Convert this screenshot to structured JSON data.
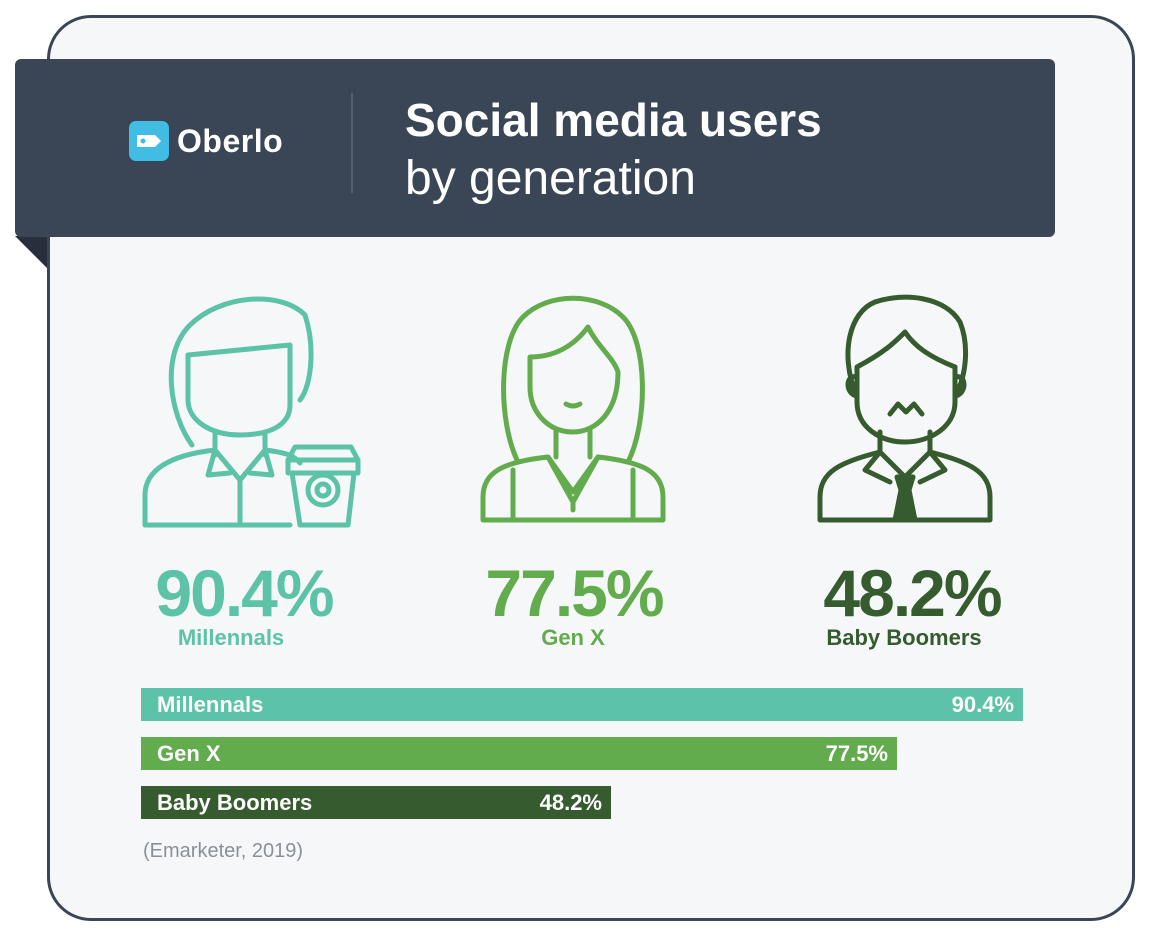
{
  "brand": {
    "name": "Oberlo"
  },
  "header": {
    "title": "Social media users",
    "subtitle": "by generation"
  },
  "colors": {
    "millennials": "#5cc2a8",
    "genx": "#63ac4d",
    "boomers": "#365b2e",
    "header_bg": "#3a4656",
    "logo_accent": "#41bde3"
  },
  "icons": [
    "millennial-person-icon",
    "coffee-cup-icon",
    "genx-woman-icon",
    "boomer-man-icon"
  ],
  "cards": [
    {
      "pct": "90.4%",
      "label": "Millennals"
    },
    {
      "pct": "77.5%",
      "label": "Gen X"
    },
    {
      "pct": "48.2%",
      "label": "Baby Boomers"
    }
  ],
  "chart_data": {
    "type": "bar",
    "orientation": "horizontal",
    "title": "Social media users",
    "subtitle": "by generation",
    "categories": [
      "Millennals",
      "Gen X",
      "Baby Boomers"
    ],
    "values": [
      90.4,
      77.5,
      48.2
    ],
    "value_labels": [
      "90.4%",
      "77.5%",
      "48.2%"
    ],
    "unit": "%",
    "xlim": [
      0,
      100
    ],
    "grid": false,
    "legend": "none"
  },
  "source": "(Emarketer, 2019)"
}
